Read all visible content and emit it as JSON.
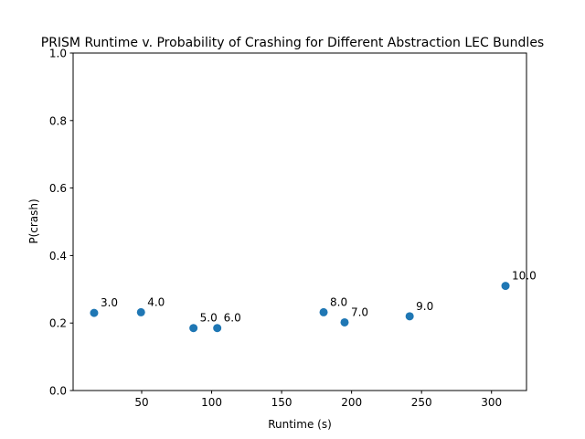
{
  "chart_data": {
    "type": "scatter",
    "title": "PRISM Runtime v. Probability of Crashing for Different Abstraction LEC Bundles",
    "xlabel": "Runtime (s)",
    "ylabel": "P(crash)",
    "xlim": [
      1,
      325
    ],
    "ylim": [
      0,
      1.0
    ],
    "xticks": [
      50,
      100,
      150,
      200,
      250,
      300
    ],
    "yticks": [
      0.0,
      0.2,
      0.4,
      0.6,
      0.8,
      1.0
    ],
    "xtick_labels": [
      "50",
      "100",
      "150",
      "200",
      "250",
      "300"
    ],
    "ytick_labels": [
      "0.0",
      "0.2",
      "0.4",
      "0.6",
      "0.8",
      "1.0"
    ],
    "grid": false,
    "marker_color": "#1f77b4",
    "points": [
      {
        "x": 16,
        "y": 0.23,
        "label": "3.0"
      },
      {
        "x": 49.5,
        "y": 0.232,
        "label": "4.0"
      },
      {
        "x": 87,
        "y": 0.185,
        "label": "5.0"
      },
      {
        "x": 104,
        "y": 0.185,
        "label": "6.0"
      },
      {
        "x": 195,
        "y": 0.202,
        "label": "7.0"
      },
      {
        "x": 180,
        "y": 0.232,
        "label": "8.0"
      },
      {
        "x": 241.5,
        "y": 0.22,
        "label": "9.0"
      },
      {
        "x": 310,
        "y": 0.31,
        "label": "10.0"
      }
    ]
  }
}
